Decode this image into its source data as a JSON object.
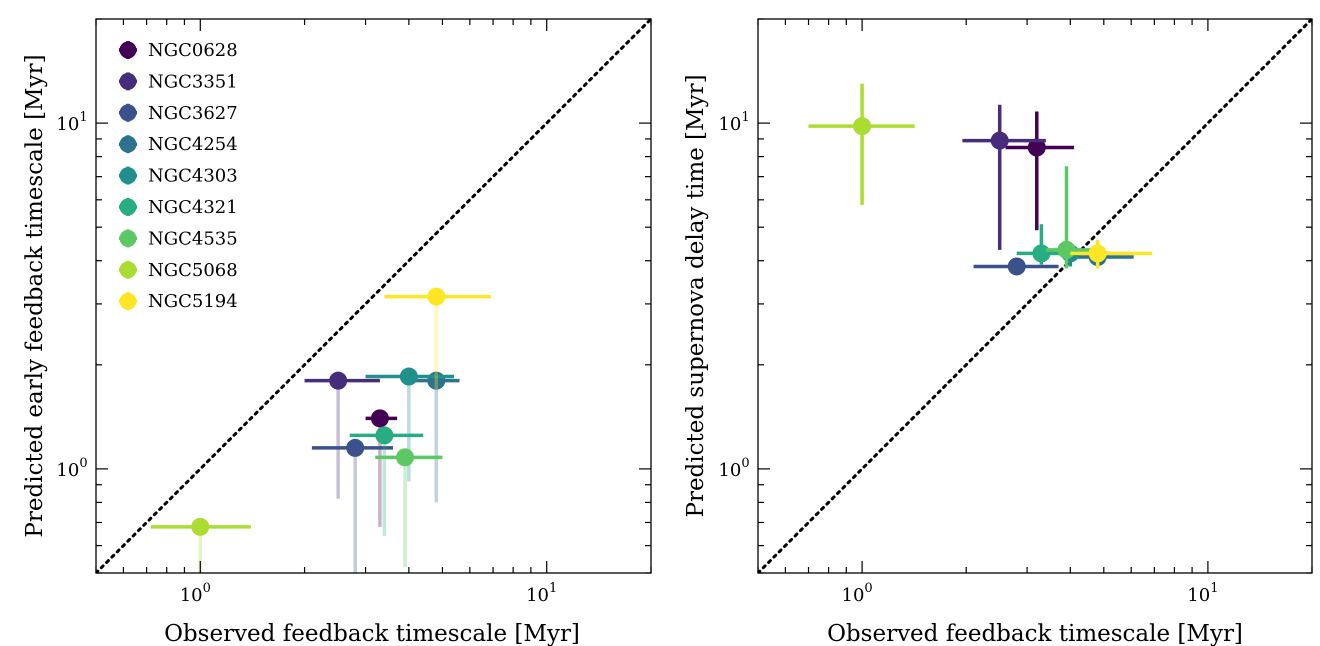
{
  "chart_data": [
    {
      "type": "scatter",
      "panel": "left",
      "title": "",
      "xlabel": "Observed feedback timescale [Myr]",
      "ylabel": "Predicted early feedback timescale [Myr]",
      "xscale": "log",
      "yscale": "log",
      "xlim": [
        0.5,
        20
      ],
      "ylim": [
        0.5,
        20
      ],
      "grid": false,
      "legend_position": "top-left",
      "reference_line": "y = x (dotted)",
      "x_tick_labels": [
        {
          "base": "10",
          "exp": "0"
        },
        {
          "base": "10",
          "exp": "1"
        }
      ],
      "y_tick_labels": [
        {
          "base": "10",
          "exp": "0"
        },
        {
          "base": "10",
          "exp": "1"
        }
      ],
      "series": [
        {
          "name": "NGC0628",
          "color": "#440154",
          "x": 3.3,
          "xerr": [
            3.0,
            3.7
          ],
          "y": 1.4,
          "yerr": [
            0.68,
            1.45
          ]
        },
        {
          "name": "NGC3351",
          "color": "#472c7a",
          "x": 2.5,
          "xerr": [
            2.0,
            3.3
          ],
          "y": 1.8,
          "yerr": [
            0.82,
            1.8
          ]
        },
        {
          "name": "NGC3627",
          "color": "#3b518b",
          "x": 2.8,
          "xerr": [
            2.1,
            3.6
          ],
          "y": 1.15,
          "yerr": [
            0.5,
            1.15
          ]
        },
        {
          "name": "NGC4254",
          "color": "#2c718e",
          "x": 4.8,
          "xerr": [
            3.9,
            5.6
          ],
          "y": 1.8,
          "yerr": [
            0.8,
            1.8
          ]
        },
        {
          "name": "NGC4303",
          "color": "#21908d",
          "x": 4.0,
          "xerr": [
            3.0,
            5.4
          ],
          "y": 1.85,
          "yerr": [
            0.92,
            1.85
          ]
        },
        {
          "name": "NGC4321",
          "color": "#27ad81",
          "x": 3.4,
          "xerr": [
            2.7,
            4.4
          ],
          "y": 1.25,
          "yerr": [
            0.64,
            1.25
          ]
        },
        {
          "name": "NGC4535",
          "color": "#5cc863",
          "x": 3.9,
          "xerr": [
            3.2,
            5.0
          ],
          "y": 1.08,
          "yerr": [
            0.52,
            1.08
          ]
        },
        {
          "name": "NGC5068",
          "color": "#aadc32",
          "x": 1.0,
          "xerr": [
            0.72,
            1.4
          ],
          "y": 0.68,
          "yerr": [
            0.5,
            0.68
          ]
        },
        {
          "name": "NGC5194",
          "color": "#fde725",
          "x": 4.8,
          "xerr": [
            3.4,
            6.9
          ],
          "y": 3.15,
          "yerr": [
            1.7,
            3.15
          ]
        }
      ]
    },
    {
      "type": "scatter",
      "panel": "right",
      "title": "",
      "xlabel": "Observed feedback timescale [Myr]",
      "ylabel": "Predicted supernova delay time [Myr]",
      "xscale": "log",
      "yscale": "log",
      "xlim": [
        0.5,
        20
      ],
      "ylim": [
        0.5,
        20
      ],
      "grid": false,
      "reference_line": "y = x (dotted)",
      "x_tick_labels": [
        {
          "base": "10",
          "exp": "0"
        },
        {
          "base": "10",
          "exp": "1"
        }
      ],
      "y_tick_labels": [
        {
          "base": "10",
          "exp": "0"
        },
        {
          "base": "10",
          "exp": "1"
        }
      ],
      "series": [
        {
          "name": "NGC0628",
          "color": "#440154",
          "x": 3.2,
          "xerr": [
            2.6,
            4.1
          ],
          "y": 8.5,
          "yerr": [
            4.9,
            10.8
          ]
        },
        {
          "name": "NGC3351",
          "color": "#472c7a",
          "x": 2.5,
          "xerr": [
            1.95,
            3.4
          ],
          "y": 8.9,
          "yerr": [
            4.3,
            11.3
          ]
        },
        {
          "name": "NGC3627",
          "color": "#3b518b",
          "x": 2.8,
          "xerr": [
            2.1,
            3.7
          ],
          "y": 3.85,
          "yerr": [
            3.75,
            3.95
          ]
        },
        {
          "name": "NGC4254",
          "color": "#2c718e",
          "x": 4.8,
          "xerr": [
            3.9,
            6.1
          ],
          "y": 4.1,
          "yerr": [
            3.9,
            4.3
          ]
        },
        {
          "name": "NGC4303",
          "color": "#21908d",
          "x": 4.0,
          "xerr": [
            3.5,
            5.2
          ],
          "y": 4.2,
          "yerr": [
            3.85,
            4.5
          ]
        },
        {
          "name": "NGC4321",
          "color": "#27ad81",
          "x": 3.3,
          "xerr": [
            2.8,
            4.0
          ],
          "y": 4.2,
          "yerr": [
            3.9,
            5.1
          ]
        },
        {
          "name": "NGC4535",
          "color": "#5cc863",
          "x": 3.9,
          "xerr": [
            3.4,
            4.6
          ],
          "y": 4.3,
          "yerr": [
            3.8,
            7.5
          ]
        },
        {
          "name": "NGC5068",
          "color": "#aadc32",
          "x": 1.0,
          "xerr": [
            0.7,
            1.42
          ],
          "y": 9.8,
          "yerr": [
            5.8,
            13.0
          ]
        },
        {
          "name": "NGC5194",
          "color": "#fde725",
          "x": 4.8,
          "xerr": [
            4.0,
            6.9
          ],
          "y": 4.2,
          "yerr": [
            3.8,
            4.6
          ]
        }
      ]
    }
  ]
}
